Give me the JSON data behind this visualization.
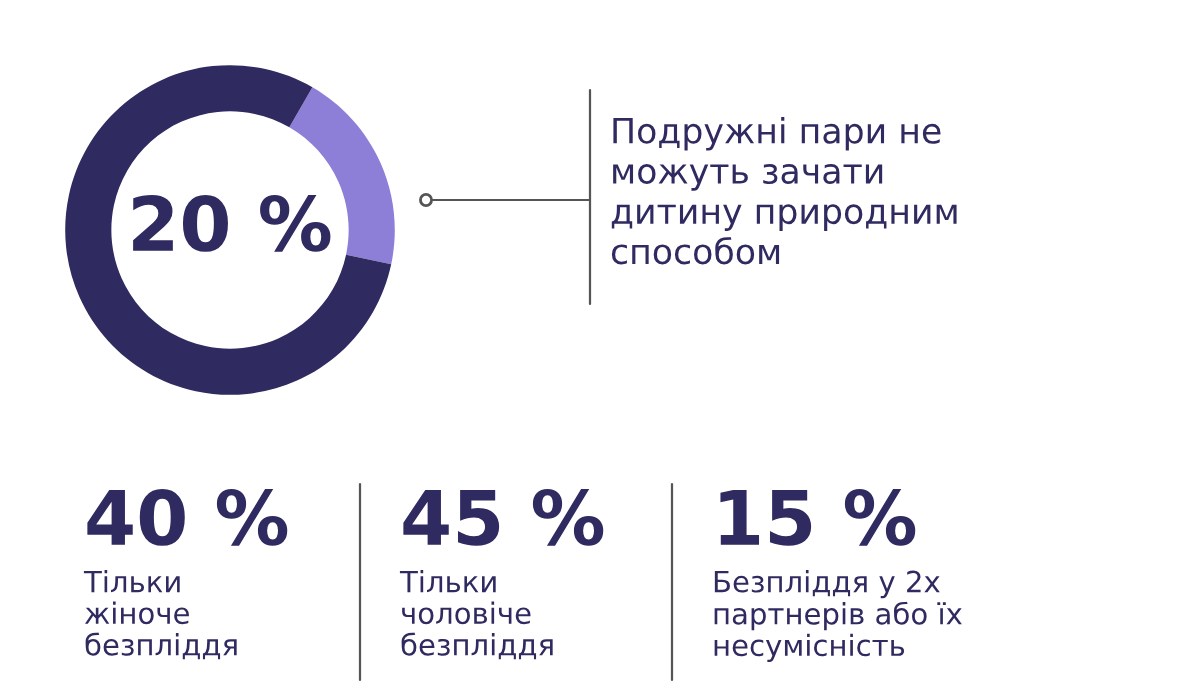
{
  "chart_data": [
    {
      "type": "donut",
      "categories": [
        null,
        null
      ],
      "values": [
        20,
        80
      ],
      "colors": [
        "#8d7ed8",
        "#2f2a60"
      ],
      "annotations": [
        "20 %",
        "Подружні пари не\nможуть зачати\nдитину природним\nспособом"
      ]
    },
    {
      "type": "other",
      "annotations": [
        "40 %",
        "Тільки\nжіноче\nбезпліддя",
        "45 %",
        "Тільки\nчоловіче\nбезпліддя",
        "15 %",
        "Безпліддя у 2х\nпартнерів або їх\nнесумісність"
      ]
    }
  ]
}
